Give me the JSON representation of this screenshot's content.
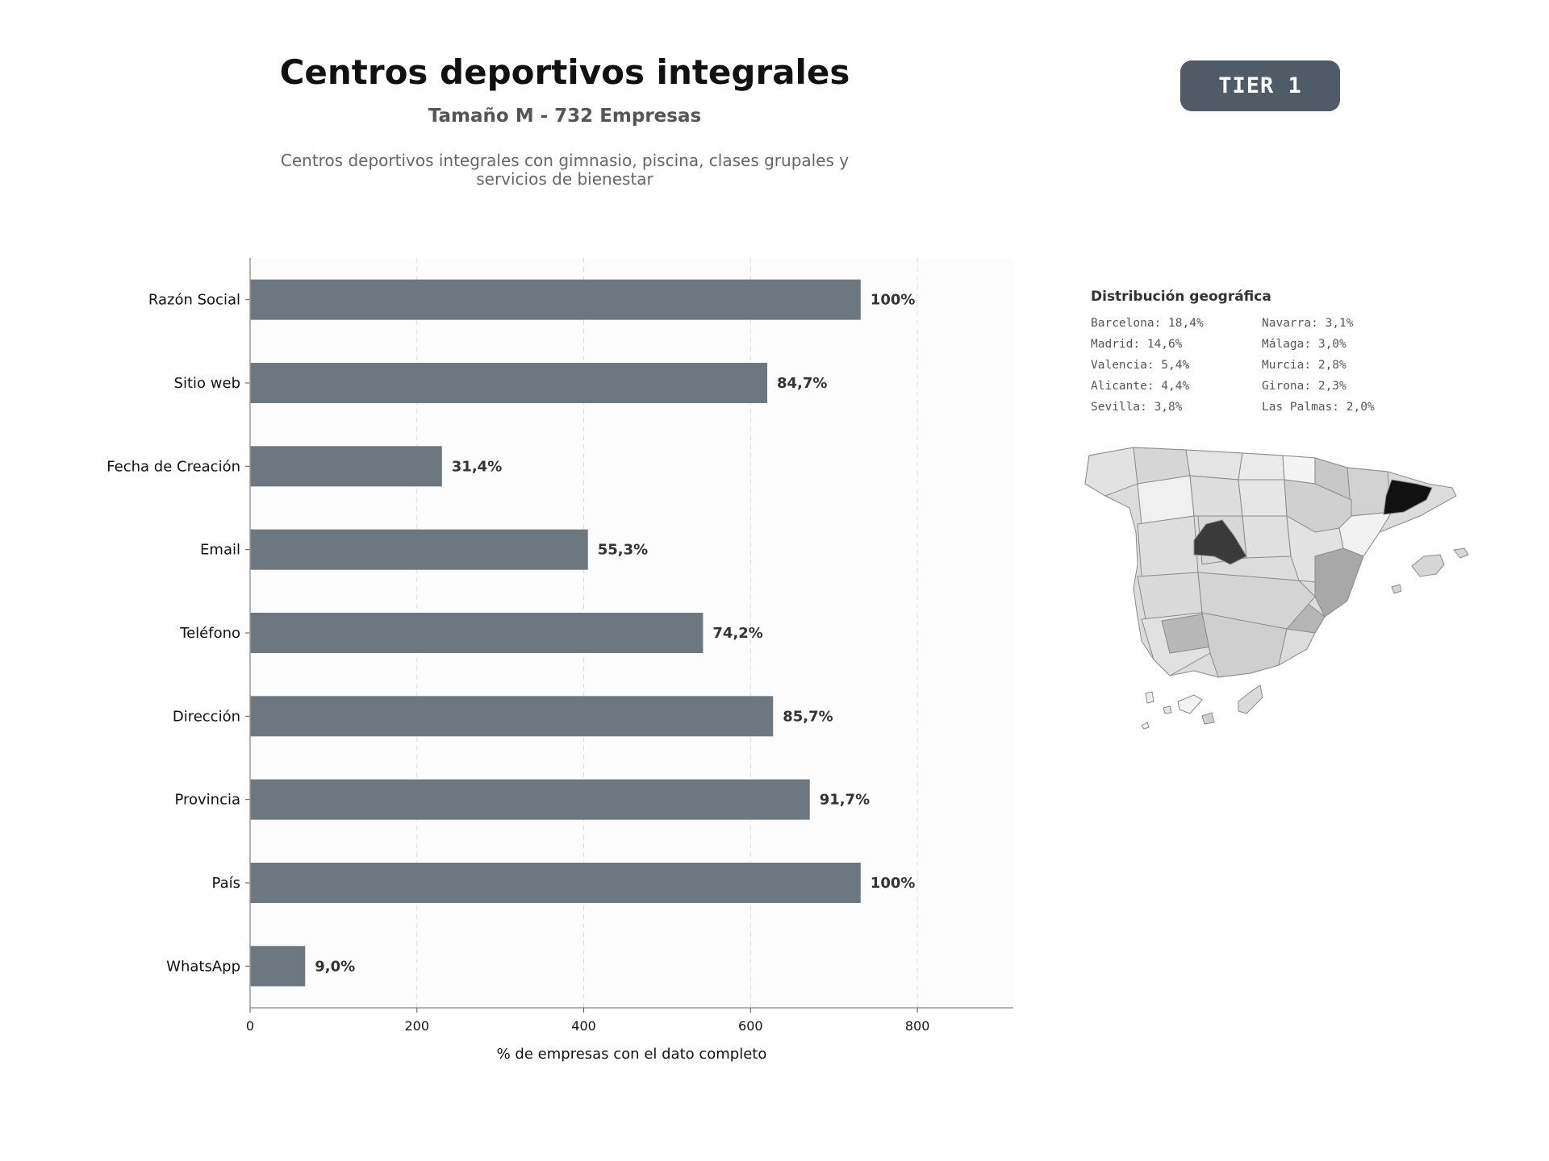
{
  "header": {
    "title": "Centros deportivos integrales",
    "subtitle": "Tamaño M - 732 Empresas",
    "description": "Centros deportivos integrales con gimnasio, piscina, clases grupales y servicios de bienestar",
    "tier_badge": "TIER 1"
  },
  "colors": {
    "bar": "#6c7780",
    "badge": "#4f5b67",
    "map_highlight": "#111111",
    "map_second": "#3a3a3a"
  },
  "chart_data": {
    "type": "bar",
    "orientation": "horizontal",
    "categories": [
      "Razón Social",
      "Sitio web",
      "Fecha de Creación",
      "Email",
      "Teléfono",
      "Dirección",
      "Provincia",
      "País",
      "WhatsApp"
    ],
    "values": [
      732,
      620,
      230,
      405,
      543,
      627,
      671,
      732,
      66
    ],
    "labels": [
      "100%",
      "84,7%",
      "31,4%",
      "55,3%",
      "74,2%",
      "85,7%",
      "91,7%",
      "100%",
      "9,0%"
    ],
    "xlabel": "% de empresas con el dato completo",
    "xticks": [
      0,
      200,
      400,
      600,
      800
    ],
    "xlim": [
      0,
      915
    ],
    "grid": "vertical dashed"
  },
  "geo": {
    "title": "Distribución geográfica",
    "items": [
      "Barcelona: 18,4%",
      "Navarra: 3,1%",
      "Madrid: 14,6%",
      "Málaga: 3,0%",
      "Valencia: 5,4%",
      "Murcia: 2,8%",
      "Alicante: 4,4%",
      "Girona: 2,3%",
      "Sevilla: 3,8%",
      "Las Palmas: 2,0%"
    ]
  }
}
